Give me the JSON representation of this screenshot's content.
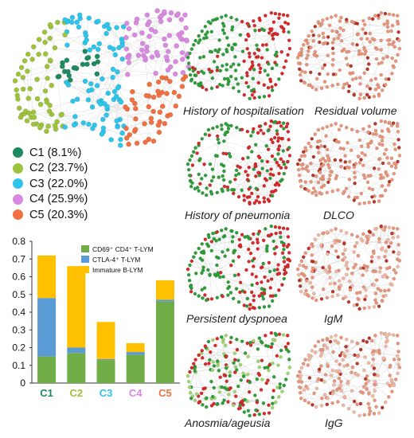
{
  "cluster_legend": [
    {
      "label": "C1 (8.1%)",
      "color": "#1e8a60"
    },
    {
      "label": "C2 (23.7%)",
      "color": "#9dc23b"
    },
    {
      "label": "C3 (22.0%)",
      "color": "#2fc4ea"
    },
    {
      "label": "C4 (25.9%)",
      "color": "#d98ae0"
    },
    {
      "label": "C5 (20.3%)",
      "color": "#f07042"
    }
  ],
  "feature_panels": {
    "history_of_hospitalisation": "History of hospitalisation",
    "residual_volume": "Residual volume",
    "history_of_pneumonia": "History of pneumonia",
    "dlco": "DLCO",
    "persistent_dyspnoea": "Persistent dyspnoea",
    "igm": "IgM",
    "anosmia_ageusia": "Anosmia/ageusia",
    "igg": "IgG"
  },
  "colors": {
    "green_feature": "#2e9e3a",
    "red_feature": "#d8292a",
    "peach_feature": "#e8957a",
    "dark_peach": "#b8362a",
    "light_green": "#9fd56e"
  },
  "chart_data": {
    "type": "bar",
    "stacked": true,
    "categories": [
      "C1",
      "C2",
      "C3",
      "C4",
      "C5"
    ],
    "category_colors": [
      "#1e8a60",
      "#9dc23b",
      "#2fc4ea",
      "#d98ae0",
      "#f07042"
    ],
    "series": [
      {
        "name": "CD69⁺ CD4⁺ T-LYM",
        "color": "#70ad47",
        "values": [
          0.15,
          0.17,
          0.13,
          0.16,
          0.46
        ]
      },
      {
        "name": "CTLA-4⁺ T-LYM",
        "color": "#5b9bd5",
        "values": [
          0.33,
          0.03,
          0.005,
          0.015,
          0.01
        ]
      },
      {
        "name": "Immature B-LYM",
        "color": "#ffc000",
        "values": [
          0.24,
          0.46,
          0.21,
          0.05,
          0.11
        ]
      }
    ],
    "yticks": [
      "0",
      "0.1",
      "0.2",
      "0.3",
      "0.4",
      "0.5",
      "0.6",
      "0.7",
      "0.8"
    ],
    "ylim": [
      0,
      0.8
    ],
    "legend_position": "top-right"
  }
}
